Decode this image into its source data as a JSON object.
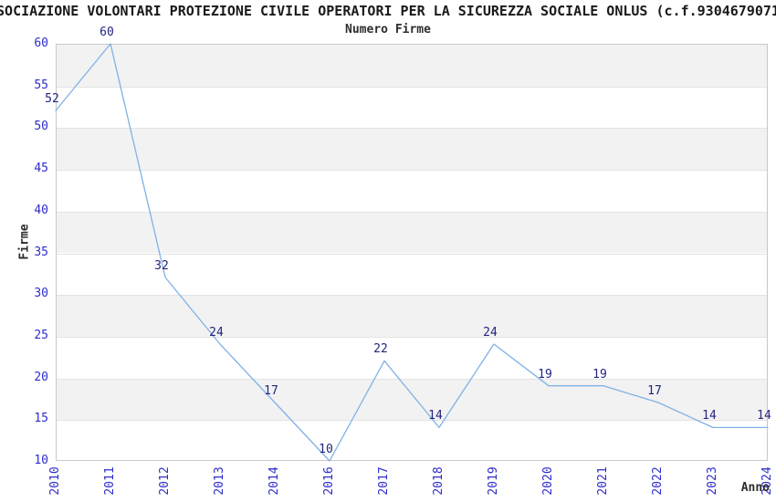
{
  "title": "SOCIAZIONE VOLONTARI PROTEZIONE CIVILE OPERATORI PER LA SICUREZZA SOCIALE ONLUS (c.f.9304679071",
  "chart_data": {
    "type": "line",
    "title": "Numero Firme",
    "xlabel": "Anno",
    "ylabel": "Firme",
    "categories": [
      "2010",
      "2011",
      "2012",
      "2013",
      "2014",
      "2016",
      "2017",
      "2018",
      "2019",
      "2020",
      "2021",
      "2022",
      "2023",
      "2024"
    ],
    "values": [
      52,
      60,
      32,
      24,
      17,
      10,
      22,
      14,
      24,
      19,
      19,
      17,
      14,
      14
    ],
    "yticks": [
      10,
      15,
      20,
      25,
      30,
      35,
      40,
      45,
      50,
      55,
      60
    ],
    "ylim": [
      10,
      60
    ],
    "grid": "horizontal",
    "band_intervals": [
      [
        15,
        20
      ],
      [
        25,
        30
      ],
      [
        35,
        40
      ],
      [
        45,
        50
      ],
      [
        55,
        60
      ]
    ],
    "legend": "none",
    "colors": {
      "line": "#7fb2e5",
      "tick_label": "#2d2dcc",
      "data_label": "#242480",
      "band": "#f2f2f2",
      "gridline": "#e3e3e3",
      "spine": "#c8c8c8",
      "title": "#1a1a1a",
      "axis_label": "#2b2b2b"
    }
  }
}
